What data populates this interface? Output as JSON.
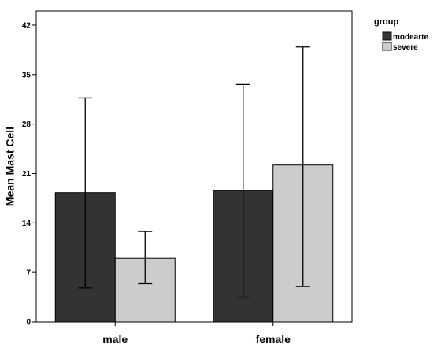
{
  "chart_data": {
    "type": "bar",
    "categories": [
      "male",
      "female"
    ],
    "series": [
      {
        "name": "modearte",
        "color": "#333333",
        "values": [
          18.3,
          18.6
        ],
        "error_low": [
          4.8,
          3.5
        ],
        "error_high": [
          31.7,
          33.6
        ]
      },
      {
        "name": "severe",
        "color": "#cccccc",
        "values": [
          9.0,
          22.2
        ],
        "error_low": [
          5.4,
          5.0
        ],
        "error_high": [
          12.8,
          38.9
        ]
      }
    ],
    "xlabel": "",
    "ylabel": "Mean Mast Cell",
    "ylim": [
      0,
      44
    ],
    "yticks": [
      0,
      7,
      14,
      21,
      28,
      35,
      42
    ],
    "legend_title": "group",
    "legend_position": "top-right",
    "grid": false
  }
}
